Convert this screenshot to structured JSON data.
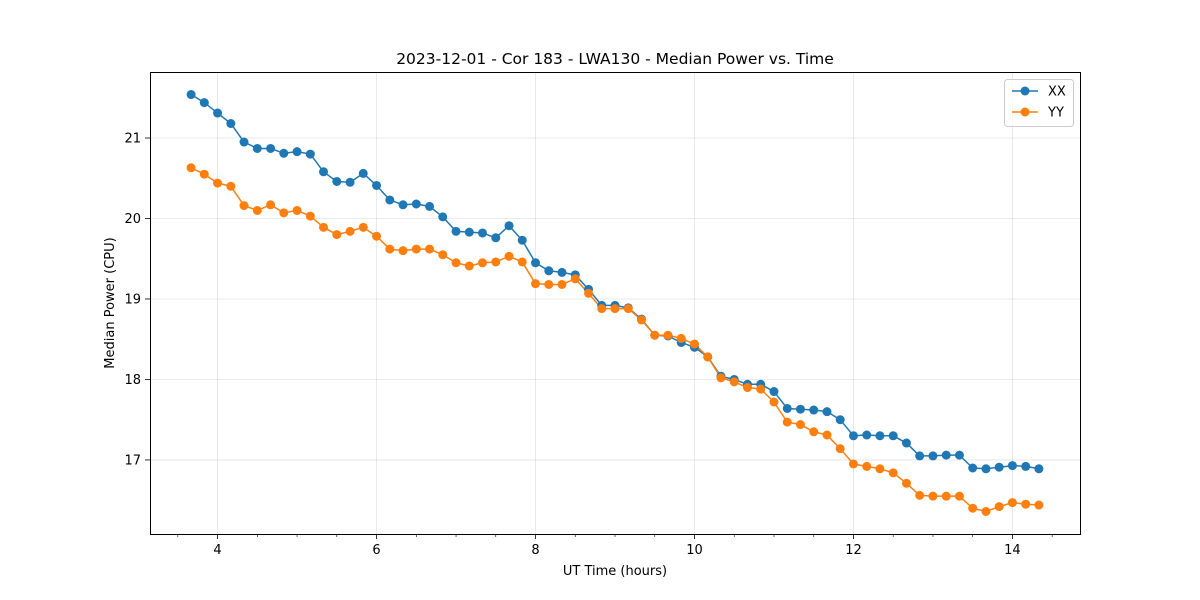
{
  "chart_data": {
    "type": "line",
    "title": "2023-12-01 - Cor 183 - LWA130 - Median Power vs. Time",
    "xlabel": "UT Time (hours)",
    "ylabel": "Median Power (CPU)",
    "xlim": [
      3.15,
      14.85
    ],
    "ylim": [
      16.08,
      21.82
    ],
    "xticks": [
      4,
      6,
      8,
      10,
      12,
      14
    ],
    "xtick_labels": [
      "4",
      "6",
      "8",
      "10",
      "12",
      "14"
    ],
    "x_minor_step": 0.5,
    "yticks": [
      17,
      18,
      19,
      20,
      21
    ],
    "ytick_labels": [
      "17",
      "18",
      "19",
      "20",
      "21"
    ],
    "grid": true,
    "legend_position": "top-right",
    "marker": "circle",
    "x": [
      3.667,
      3.833,
      4.0,
      4.167,
      4.333,
      4.5,
      4.667,
      4.833,
      5.0,
      5.167,
      5.333,
      5.5,
      5.667,
      5.833,
      6.0,
      6.167,
      6.333,
      6.5,
      6.667,
      6.833,
      7.0,
      7.167,
      7.333,
      7.5,
      7.667,
      7.833,
      8.0,
      8.167,
      8.333,
      8.5,
      8.667,
      8.833,
      9.0,
      9.167,
      9.333,
      9.5,
      9.667,
      9.833,
      10.0,
      10.167,
      10.333,
      10.5,
      10.667,
      10.833,
      11.0,
      11.167,
      11.333,
      11.5,
      11.667,
      11.833,
      12.0,
      12.167,
      12.333,
      12.5,
      12.667,
      12.833,
      13.0,
      13.167,
      13.333,
      13.5,
      13.667,
      13.833,
      14.0,
      14.167,
      14.333
    ],
    "series": [
      {
        "name": "XX",
        "color": "#1f77b4",
        "values": [
          21.54,
          21.44,
          21.31,
          21.18,
          20.95,
          20.87,
          20.87,
          20.81,
          20.83,
          20.8,
          20.58,
          20.46,
          20.45,
          20.56,
          20.41,
          20.23,
          20.17,
          20.18,
          20.15,
          20.02,
          19.84,
          19.83,
          19.82,
          19.76,
          19.91,
          19.73,
          19.45,
          19.35,
          19.33,
          19.3,
          19.12,
          18.92,
          18.92,
          18.89,
          18.75,
          18.55,
          18.54,
          18.46,
          18.4,
          18.28,
          18.04,
          18.0,
          17.94,
          17.94,
          17.85,
          17.64,
          17.63,
          17.62,
          17.6,
          17.5,
          17.3,
          17.31,
          17.3,
          17.3,
          17.21,
          17.05,
          17.05,
          17.06,
          17.06,
          16.9,
          16.89,
          16.91,
          16.93,
          16.92,
          16.89
        ]
      },
      {
        "name": "YY",
        "color": "#ff7f0e",
        "values": [
          20.63,
          20.55,
          20.44,
          20.4,
          20.16,
          20.1,
          20.17,
          20.07,
          20.1,
          20.03,
          19.89,
          19.8,
          19.84,
          19.89,
          19.78,
          19.62,
          19.6,
          19.62,
          19.62,
          19.55,
          19.45,
          19.41,
          19.45,
          19.46,
          19.53,
          19.46,
          19.19,
          19.18,
          19.18,
          19.25,
          19.07,
          18.88,
          18.88,
          18.88,
          18.74,
          18.55,
          18.55,
          18.51,
          18.44,
          18.28,
          18.02,
          17.97,
          17.9,
          17.88,
          17.72,
          17.47,
          17.44,
          17.35,
          17.31,
          17.14,
          16.95,
          16.92,
          16.89,
          16.84,
          16.71,
          16.56,
          16.55,
          16.55,
          16.55,
          16.4,
          16.36,
          16.42,
          16.47,
          16.45,
          16.44
        ]
      }
    ]
  }
}
